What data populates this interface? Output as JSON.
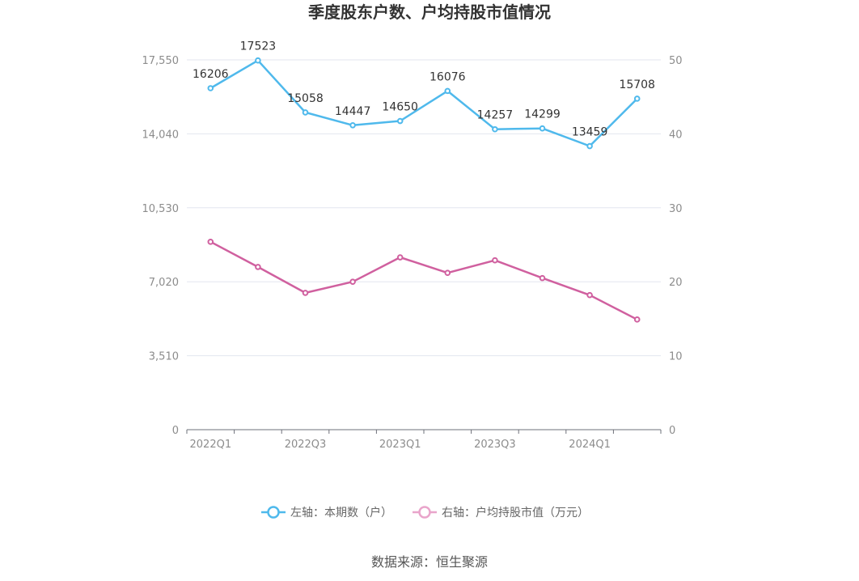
{
  "chart_data": {
    "type": "line",
    "title": "季度股东户数、户均持股市值情况",
    "categories": [
      "2022Q1",
      "2022Q2",
      "2022Q3",
      "2022Q4",
      "2023Q1",
      "2023Q2",
      "2023Q3",
      "2023Q4",
      "2024Q1",
      "2024Q2"
    ],
    "x_tick_labels": [
      "2022Q1",
      "",
      "2022Q3",
      "",
      "2023Q1",
      "",
      "2023Q3",
      "",
      "2024Q1",
      ""
    ],
    "left_axis": {
      "ticks": [
        "0",
        "3,510",
        "7,020",
        "10,530",
        "14,040",
        "17,550"
      ],
      "min": 0,
      "max": 17550
    },
    "right_axis": {
      "ticks": [
        "0",
        "10",
        "20",
        "30",
        "40",
        "50"
      ],
      "min": 0,
      "max": 50
    },
    "series": [
      {
        "name": "左轴：本期数（户）",
        "axis": "left",
        "color": "#4fb9ec",
        "values": [
          16206,
          17523,
          15058,
          14447,
          14650,
          16076,
          14257,
          14299,
          13459,
          15708
        ],
        "labels": [
          "16206",
          "17523",
          "15058",
          "14447",
          "14650",
          "16076",
          "14257",
          "14299",
          "13459",
          "15708"
        ]
      },
      {
        "name": "右轴：户均持股市值（万元）",
        "axis": "right",
        "color": "#d0609f",
        "values": [
          25.4,
          22.0,
          18.5,
          20.0,
          23.3,
          21.2,
          22.9,
          20.5,
          18.2,
          14.9
        ]
      }
    ],
    "legend": {
      "position": "bottom"
    },
    "grid": true
  },
  "source": "数据来源：恒生聚源"
}
